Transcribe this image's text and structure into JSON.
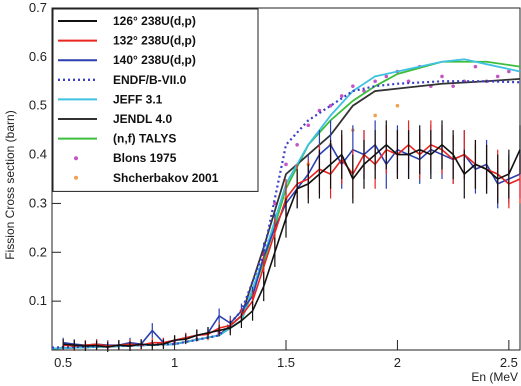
{
  "chart_data": {
    "type": "line",
    "xlabel": "En (MeV",
    "ylabel": "Fission Cross section (barn)",
    "xlim": [
      0.45,
      2.55
    ],
    "ylim": [
      0,
      0.7
    ],
    "x_ticks": [
      0.5,
      1,
      1.5,
      2,
      2.5
    ],
    "x_tick_labels": [
      "0.5",
      "1",
      "1.5",
      "2",
      "2.5"
    ],
    "y_ticks": [
      0.1,
      0.2,
      0.3,
      0.4,
      0.5,
      0.6,
      0.7
    ],
    "y_tick_labels": [
      "0.1",
      "0.2",
      "0.3",
      "0.4",
      "0.5",
      "0.6",
      "0.7"
    ],
    "grid": false,
    "legend_position": "top-left",
    "series": [
      {
        "name": "126° 238U(d,p)",
        "kind": "data",
        "color": "#111111",
        "points": [
          [
            0.5,
            0.012
          ],
          [
            0.55,
            0.01
          ],
          [
            0.6,
            0.008
          ],
          [
            0.65,
            0.009
          ],
          [
            0.7,
            0.006
          ],
          [
            0.75,
            0.01
          ],
          [
            0.8,
            0.008
          ],
          [
            0.85,
            0.012
          ],
          [
            0.9,
            0.01
          ],
          [
            0.95,
            0.012
          ],
          [
            1.0,
            0.02
          ],
          [
            1.05,
            0.022
          ],
          [
            1.1,
            0.03
          ],
          [
            1.15,
            0.035
          ],
          [
            1.2,
            0.04
          ],
          [
            1.25,
            0.045
          ],
          [
            1.3,
            0.06
          ],
          [
            1.35,
            0.08
          ],
          [
            1.4,
            0.13
          ],
          [
            1.45,
            0.2
          ],
          [
            1.5,
            0.27
          ],
          [
            1.55,
            0.33
          ],
          [
            1.6,
            0.34
          ],
          [
            1.65,
            0.36
          ],
          [
            1.7,
            0.38
          ],
          [
            1.75,
            0.4
          ],
          [
            1.8,
            0.35
          ],
          [
            1.85,
            0.38
          ],
          [
            1.9,
            0.4
          ],
          [
            1.95,
            0.42
          ],
          [
            2.0,
            0.4
          ],
          [
            2.05,
            0.4
          ],
          [
            2.1,
            0.41
          ],
          [
            2.15,
            0.4
          ],
          [
            2.2,
            0.42
          ],
          [
            2.25,
            0.4
          ],
          [
            2.3,
            0.36
          ],
          [
            2.35,
            0.38
          ],
          [
            2.4,
            0.37
          ],
          [
            2.45,
            0.35
          ],
          [
            2.5,
            0.36
          ],
          [
            2.55,
            0.41
          ]
        ],
        "errors": [
          0.01,
          0.01,
          0.01,
          0.01,
          0.01,
          0.01,
          0.01,
          0.01,
          0.01,
          0.01,
          0.01,
          0.01,
          0.012,
          0.012,
          0.012,
          0.015,
          0.015,
          0.02,
          0.03,
          0.03,
          0.04,
          0.04,
          0.04,
          0.05,
          0.05,
          0.05,
          0.05,
          0.05,
          0.05,
          0.05,
          0.05,
          0.05,
          0.05,
          0.05,
          0.05,
          0.05,
          0.05,
          0.05,
          0.05,
          0.05,
          0.05,
          0.05
        ]
      },
      {
        "name": "132° 238U(d,p)",
        "kind": "data",
        "color": "#e8251f",
        "points": [
          [
            0.5,
            0.01
          ],
          [
            0.55,
            0.008
          ],
          [
            0.6,
            0.01
          ],
          [
            0.65,
            0.012
          ],
          [
            0.7,
            0.008
          ],
          [
            0.75,
            0.01
          ],
          [
            0.8,
            0.012
          ],
          [
            0.85,
            0.01
          ],
          [
            0.9,
            0.015
          ],
          [
            0.95,
            0.015
          ],
          [
            1.0,
            0.02
          ],
          [
            1.05,
            0.025
          ],
          [
            1.1,
            0.03
          ],
          [
            1.15,
            0.032
          ],
          [
            1.2,
            0.045
          ],
          [
            1.25,
            0.05
          ],
          [
            1.3,
            0.07
          ],
          [
            1.35,
            0.1
          ],
          [
            1.4,
            0.17
          ],
          [
            1.45,
            0.24
          ],
          [
            1.5,
            0.31
          ],
          [
            1.55,
            0.34
          ],
          [
            1.6,
            0.35
          ],
          [
            1.65,
            0.37
          ],
          [
            1.7,
            0.36
          ],
          [
            1.75,
            0.39
          ],
          [
            1.8,
            0.36
          ],
          [
            1.85,
            0.4
          ],
          [
            1.9,
            0.38
          ],
          [
            1.95,
            0.41
          ],
          [
            2.0,
            0.4
          ],
          [
            2.05,
            0.42
          ],
          [
            2.1,
            0.4
          ],
          [
            2.15,
            0.42
          ],
          [
            2.2,
            0.41
          ],
          [
            2.25,
            0.39
          ],
          [
            2.3,
            0.4
          ],
          [
            2.35,
            0.38
          ],
          [
            2.4,
            0.37
          ],
          [
            2.45,
            0.36
          ],
          [
            2.5,
            0.34
          ],
          [
            2.55,
            0.35
          ]
        ],
        "errors": [
          0.01,
          0.01,
          0.01,
          0.01,
          0.01,
          0.01,
          0.01,
          0.01,
          0.01,
          0.01,
          0.01,
          0.01,
          0.012,
          0.012,
          0.012,
          0.015,
          0.015,
          0.02,
          0.03,
          0.03,
          0.04,
          0.04,
          0.04,
          0.05,
          0.05,
          0.05,
          0.05,
          0.05,
          0.05,
          0.05,
          0.05,
          0.05,
          0.05,
          0.05,
          0.05,
          0.05,
          0.05,
          0.05,
          0.05,
          0.05,
          0.05,
          0.05
        ]
      },
      {
        "name": "140° 238U(d,p)",
        "kind": "data",
        "color": "#2a3fb0",
        "points": [
          [
            0.5,
            0.015
          ],
          [
            0.55,
            0.012
          ],
          [
            0.6,
            0.01
          ],
          [
            0.65,
            0.012
          ],
          [
            0.7,
            0.01
          ],
          [
            0.75,
            0.01
          ],
          [
            0.8,
            0.015
          ],
          [
            0.85,
            0.012
          ],
          [
            0.9,
            0.04
          ],
          [
            0.95,
            0.015
          ],
          [
            1.0,
            0.02
          ],
          [
            1.05,
            0.025
          ],
          [
            1.1,
            0.03
          ],
          [
            1.15,
            0.035
          ],
          [
            1.2,
            0.07
          ],
          [
            1.25,
            0.055
          ],
          [
            1.3,
            0.08
          ],
          [
            1.35,
            0.11
          ],
          [
            1.4,
            0.19
          ],
          [
            1.45,
            0.25
          ],
          [
            1.5,
            0.3
          ],
          [
            1.55,
            0.33
          ],
          [
            1.6,
            0.36
          ],
          [
            1.65,
            0.4
          ],
          [
            1.7,
            0.42
          ],
          [
            1.75,
            0.38
          ],
          [
            1.8,
            0.41
          ],
          [
            1.85,
            0.4
          ],
          [
            1.9,
            0.42
          ],
          [
            1.95,
            0.38
          ],
          [
            2.0,
            0.41
          ],
          [
            2.05,
            0.4
          ],
          [
            2.1,
            0.39
          ],
          [
            2.15,
            0.41
          ],
          [
            2.2,
            0.4
          ],
          [
            2.25,
            0.39
          ],
          [
            2.3,
            0.4
          ],
          [
            2.35,
            0.37
          ],
          [
            2.4,
            0.38
          ],
          [
            2.45,
            0.34
          ],
          [
            2.5,
            0.35
          ],
          [
            2.55,
            0.36
          ]
        ],
        "errors": [
          0.01,
          0.01,
          0.01,
          0.01,
          0.01,
          0.01,
          0.01,
          0.01,
          0.015,
          0.01,
          0.01,
          0.01,
          0.012,
          0.012,
          0.015,
          0.015,
          0.015,
          0.02,
          0.03,
          0.03,
          0.04,
          0.04,
          0.04,
          0.05,
          0.05,
          0.05,
          0.05,
          0.05,
          0.05,
          0.05,
          0.05,
          0.05,
          0.05,
          0.05,
          0.05,
          0.05,
          0.05,
          0.05,
          0.05,
          0.05,
          0.05,
          0.05
        ]
      },
      {
        "name": "ENDF/B-VII.0",
        "kind": "dotted",
        "color": "#3b3ec9",
        "points": [
          [
            0.45,
            0.005
          ],
          [
            1.0,
            0.012
          ],
          [
            1.2,
            0.03
          ],
          [
            1.3,
            0.08
          ],
          [
            1.4,
            0.2
          ],
          [
            1.5,
            0.42
          ],
          [
            1.6,
            0.47
          ],
          [
            1.7,
            0.5
          ],
          [
            1.8,
            0.53
          ],
          [
            1.9,
            0.54
          ],
          [
            2.0,
            0.545
          ],
          [
            2.2,
            0.55
          ],
          [
            2.4,
            0.55
          ],
          [
            2.55,
            0.548
          ]
        ]
      },
      {
        "name": "JEFF 3.1",
        "kind": "line",
        "color": "#3fc1e0",
        "points": [
          [
            0.45,
            0.003
          ],
          [
            1.0,
            0.012
          ],
          [
            1.2,
            0.03
          ],
          [
            1.3,
            0.06
          ],
          [
            1.4,
            0.19
          ],
          [
            1.5,
            0.34
          ],
          [
            1.6,
            0.42
          ],
          [
            1.7,
            0.48
          ],
          [
            1.8,
            0.53
          ],
          [
            1.9,
            0.56
          ],
          [
            2.0,
            0.57
          ],
          [
            2.1,
            0.58
          ],
          [
            2.2,
            0.59
          ],
          [
            2.3,
            0.595
          ],
          [
            2.4,
            0.585
          ],
          [
            2.55,
            0.57
          ]
        ]
      },
      {
        "name": "JENDL 4.0",
        "kind": "line",
        "color": "#333333",
        "points": [
          [
            0.45,
            0.003
          ],
          [
            1.0,
            0.012
          ],
          [
            1.2,
            0.03
          ],
          [
            1.3,
            0.07
          ],
          [
            1.4,
            0.21
          ],
          [
            1.5,
            0.36
          ],
          [
            1.6,
            0.4
          ],
          [
            1.7,
            0.44
          ],
          [
            1.8,
            0.5
          ],
          [
            1.9,
            0.53
          ],
          [
            2.0,
            0.535
          ],
          [
            2.2,
            0.545
          ],
          [
            2.4,
            0.55
          ],
          [
            2.55,
            0.555
          ]
        ]
      },
      {
        "name": "(n,f) TALYS",
        "kind": "line",
        "color": "#3cbd3c",
        "points": [
          [
            0.45,
            0.003
          ],
          [
            1.0,
            0.012
          ],
          [
            1.2,
            0.03
          ],
          [
            1.3,
            0.06
          ],
          [
            1.4,
            0.18
          ],
          [
            1.5,
            0.33
          ],
          [
            1.6,
            0.42
          ],
          [
            1.7,
            0.47
          ],
          [
            1.8,
            0.51
          ],
          [
            1.9,
            0.54
          ],
          [
            2.0,
            0.565
          ],
          [
            2.2,
            0.59
          ],
          [
            2.4,
            0.59
          ],
          [
            2.55,
            0.58
          ]
        ]
      },
      {
        "name": "Blons 1975",
        "kind": "markers",
        "color": "#c455c4",
        "points": [
          [
            0.5,
            0.005
          ],
          [
            0.6,
            0.006
          ],
          [
            0.7,
            0.007
          ],
          [
            0.8,
            0.01
          ],
          [
            0.9,
            0.012
          ],
          [
            1.0,
            0.015
          ],
          [
            1.1,
            0.022
          ],
          [
            1.2,
            0.035
          ],
          [
            1.3,
            0.08
          ],
          [
            1.4,
            0.2
          ],
          [
            1.45,
            0.3
          ],
          [
            1.5,
            0.38
          ],
          [
            1.55,
            0.42
          ],
          [
            1.6,
            0.46
          ],
          [
            1.65,
            0.49
          ],
          [
            1.7,
            0.5
          ],
          [
            1.75,
            0.52
          ],
          [
            1.8,
            0.54
          ],
          [
            1.85,
            0.53
          ],
          [
            1.9,
            0.55
          ],
          [
            1.95,
            0.56
          ],
          [
            2.0,
            0.57
          ],
          [
            2.05,
            0.55
          ],
          [
            2.1,
            0.58
          ],
          [
            2.15,
            0.54
          ],
          [
            2.2,
            0.56
          ],
          [
            2.25,
            0.54
          ],
          [
            2.3,
            0.55
          ],
          [
            2.35,
            0.58
          ],
          [
            2.4,
            0.55
          ],
          [
            2.45,
            0.56
          ],
          [
            2.5,
            0.57
          ]
        ]
      },
      {
        "name": "Shcherbakov 2001",
        "kind": "markers",
        "color": "#f0a050",
        "points": [
          [
            1.2,
            0.04
          ],
          [
            1.3,
            0.08
          ],
          [
            1.4,
            0.18
          ],
          [
            1.5,
            0.31
          ],
          [
            1.6,
            0.38
          ],
          [
            1.7,
            0.42
          ],
          [
            1.8,
            0.45
          ],
          [
            1.9,
            0.48
          ],
          [
            2.0,
            0.5
          ]
        ]
      }
    ]
  }
}
